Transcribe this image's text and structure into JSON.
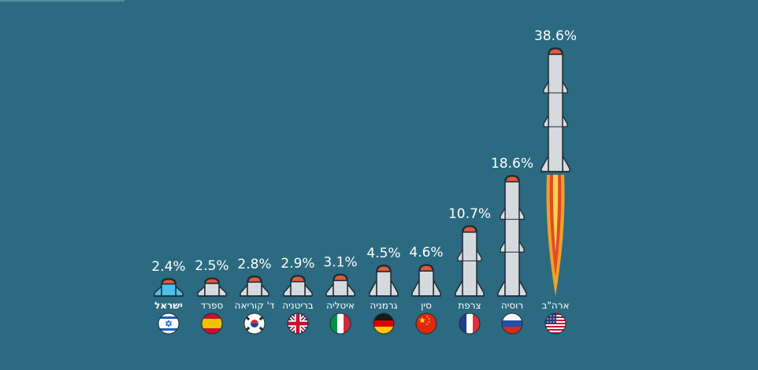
{
  "chart_data": {
    "type": "bar",
    "title": "",
    "xlabel": "",
    "ylabel": "",
    "ylim": [
      0,
      38.6
    ],
    "categories": [
      "ישראל",
      "ספרד",
      "ד' קוריאה",
      "בריטניה",
      "איטליה",
      "גרמניה",
      "סין",
      "צרפת",
      "רוסיה",
      "ארה\"ב"
    ],
    "values": [
      2.4,
      2.5,
      2.8,
      2.9,
      3.1,
      4.5,
      4.6,
      10.7,
      18.6,
      38.6
    ],
    "value_labels": [
      "2.4%",
      "2.5%",
      "2.8%",
      "2.9%",
      "3.1%",
      "4.5%",
      "4.6%",
      "10.7%",
      "18.6%",
      "38.6%"
    ],
    "flags": [
      "israel-flag-icon",
      "spain-flag-icon",
      "south-korea-flag-icon",
      "uk-flag-icon",
      "italy-flag-icon",
      "germany-flag-icon",
      "china-flag-icon",
      "france-flag-icon",
      "russia-flag-icon",
      "usa-flag-icon"
    ],
    "highlight_category": "ישראל",
    "colors": {
      "background": "#2b6a80",
      "rocket_body": "#d6dade",
      "rocket_outline": "#1e2b35",
      "rocket_nose": "#e05a3a",
      "israel_highlight": "#4cc0e6",
      "flame_outer": "#f0a02a",
      "flame_inner": "#f5d24a",
      "flame_core": "#e04a2a",
      "label_text": "#ffffff"
    }
  }
}
